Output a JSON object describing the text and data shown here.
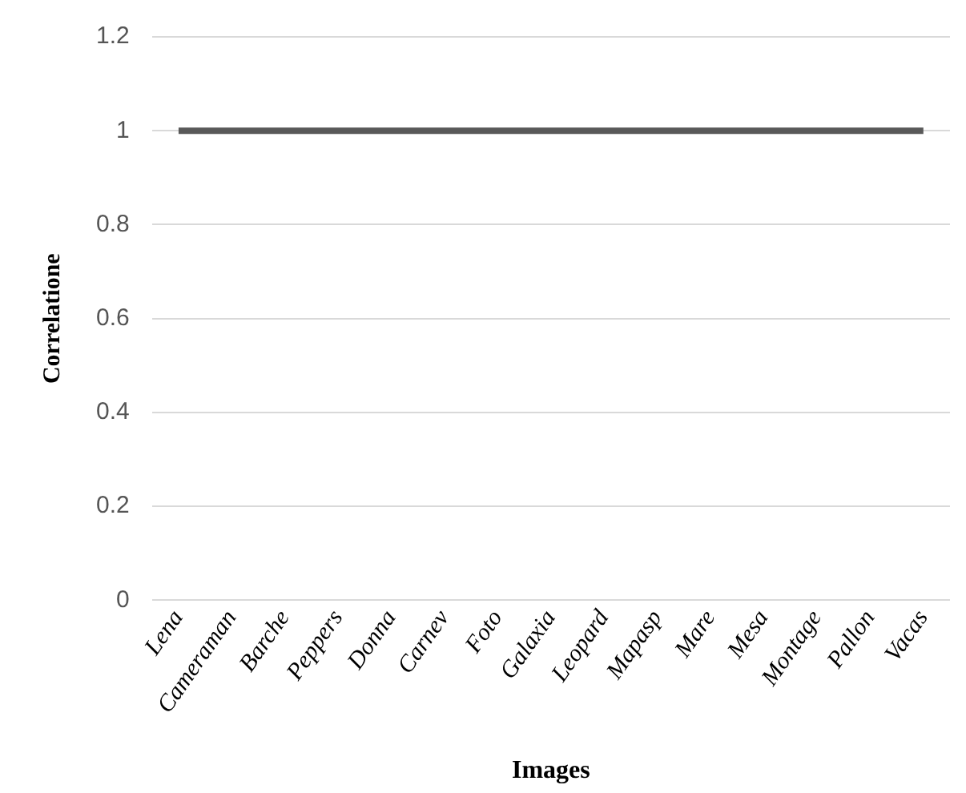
{
  "chart_data": {
    "type": "line",
    "xlabel": "Images",
    "ylabel": "Correlatione",
    "categories": [
      "Lena",
      "Cameraman",
      "Barche",
      "Peppers",
      "Donna",
      "Carnev",
      "Foto",
      "Galaxia",
      "Leopard",
      "Mapasp",
      "Mare",
      "Mesa",
      "Montage",
      "Pallon",
      "Vacas"
    ],
    "series": [
      {
        "color": "#595959",
        "values": [
          1,
          1,
          1,
          1,
          1,
          1,
          1,
          1,
          1,
          1,
          1,
          1,
          1,
          1,
          1
        ]
      }
    ],
    "ylim": [
      0,
      1.2
    ],
    "yticks": [
      0,
      0.2,
      0.4,
      0.6,
      0.8,
      1,
      1.2
    ],
    "grid": "y",
    "legend": false,
    "marker": "none",
    "line_style": "solid"
  }
}
